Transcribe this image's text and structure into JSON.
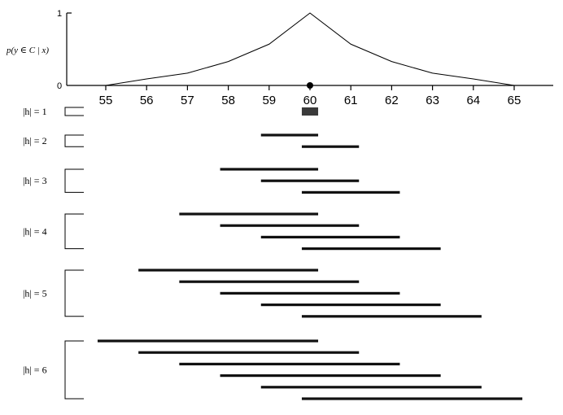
{
  "figure": {
    "ylabel": "p(y ∈ C | x)",
    "y_top_label": "1",
    "y_bottom_label": "0",
    "point_label": "60"
  },
  "chart_data": {
    "type": "line",
    "x": [
      55,
      56,
      57,
      58,
      59,
      60,
      61,
      62,
      63,
      64,
      65
    ],
    "values": [
      0.0,
      0.09,
      0.17,
      0.33,
      0.57,
      1.0,
      0.57,
      0.33,
      0.17,
      0.09,
      0.0
    ],
    "xlim": [
      54,
      66
    ],
    "ylim": [
      0,
      1
    ],
    "ticks": [
      "55",
      "56",
      "57",
      "58",
      "59",
      "60",
      "61",
      "62",
      "63",
      "64",
      "65"
    ],
    "marker_x": 60
  },
  "groups": [
    {
      "label": "|h| = 1",
      "intervals": [
        [
          59.8,
          60.2
        ]
      ]
    },
    {
      "label": "|h| = 2",
      "intervals": [
        [
          58.8,
          60.2
        ],
        [
          59.8,
          61.2
        ]
      ]
    },
    {
      "label": "|h| = 3",
      "intervals": [
        [
          57.8,
          60.2
        ],
        [
          58.8,
          61.2
        ],
        [
          59.8,
          62.2
        ]
      ]
    },
    {
      "label": "|h| = 4",
      "intervals": [
        [
          56.8,
          60.2
        ],
        [
          57.8,
          61.2
        ],
        [
          58.8,
          62.2
        ],
        [
          59.8,
          63.2
        ]
      ]
    },
    {
      "label": "|h| = 5",
      "intervals": [
        [
          55.8,
          60.2
        ],
        [
          56.8,
          61.2
        ],
        [
          57.8,
          62.2
        ],
        [
          58.8,
          63.2
        ],
        [
          59.8,
          64.2
        ]
      ]
    },
    {
      "label": "|h| = 6",
      "intervals": [
        [
          54.8,
          60.2
        ],
        [
          55.8,
          61.2
        ],
        [
          56.8,
          62.2
        ],
        [
          57.8,
          63.2
        ],
        [
          58.8,
          64.2
        ],
        [
          59.8,
          65.2
        ]
      ]
    }
  ]
}
